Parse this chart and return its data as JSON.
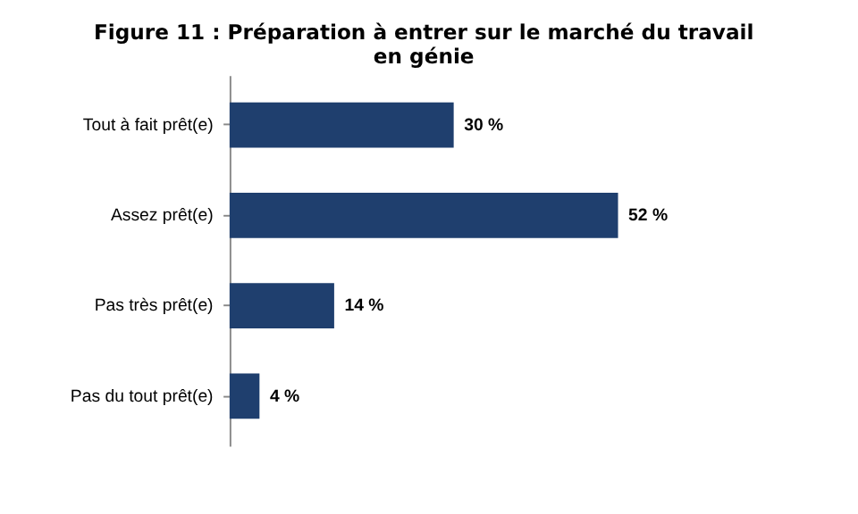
{
  "chart_data": {
    "type": "bar",
    "orientation": "horizontal",
    "title": "Figure 11 : Préparation à entrer sur le marché du travail en génie",
    "categories": [
      "Tout à fait prêt(e)",
      "Assez prêt(e)",
      "Pas très prêt(e)",
      "Pas du tout prêt(e)"
    ],
    "values": [
      30,
      52,
      14,
      4
    ],
    "color": "#1f3f6e",
    "value_labels": [
      "30 %",
      "52 %",
      "14 %",
      "4 %"
    ]
  }
}
